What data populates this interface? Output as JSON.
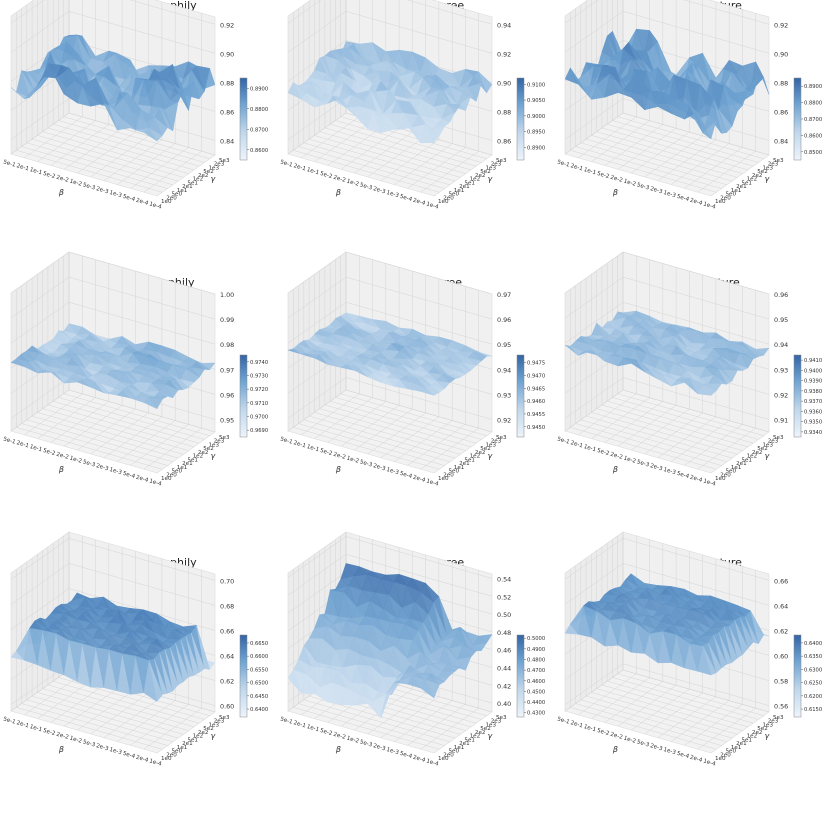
{
  "chart_data": [
    {
      "type": "surface",
      "title": "DBLP - By Homophily",
      "xlabel": "β",
      "ylabel": "γ",
      "x_ticks": [
        "5e-1",
        "2e-1",
        "1e-1",
        "5e-2",
        "2e-2",
        "1e-2",
        "5e-3",
        "2e-3",
        "1e-3",
        "5e-4",
        "2e-4",
        "1e-4"
      ],
      "y_ticks": [
        "1e0",
        "2e0",
        "5e0",
        "1e1",
        "2e1",
        "5e1",
        "1e2",
        "2e2",
        "5e2",
        "1e3",
        "2e3",
        "5e3"
      ],
      "zlim": [
        0.83,
        0.925
      ],
      "z_ticks": [
        "0.84",
        "0.86",
        "0.88",
        "0.90",
        "0.92"
      ],
      "colorbar_ticks": [
        "0.8600",
        "0.8700",
        "0.8800",
        "0.8900"
      ],
      "colorbar_range": [
        0.855,
        0.895
      ],
      "z_base": 0.88,
      "z_amp": 0.012,
      "z_tilt": 0.0,
      "rim": 0.0,
      "seed": 11,
      "dark": 0.75
    },
    {
      "type": "surface",
      "title": "DBLP - By Degree",
      "xlabel": "β",
      "ylabel": "γ",
      "x_ticks": [
        "5e-1",
        "2e-1",
        "1e-1",
        "5e-2",
        "2e-2",
        "1e-2",
        "5e-3",
        "2e-3",
        "1e-3",
        "5e-4",
        "2e-4",
        "1e-4"
      ],
      "y_ticks": [
        "1e0",
        "2e0",
        "5e0",
        "1e1",
        "2e1",
        "5e1",
        "1e2",
        "2e2",
        "5e2",
        "1e3",
        "2e3",
        "5e3"
      ],
      "zlim": [
        0.85,
        0.945
      ],
      "z_ticks": [
        "0.86",
        "0.88",
        "0.90",
        "0.92",
        "0.94"
      ],
      "colorbar_ticks": [
        "0.8900",
        "0.8950",
        "0.9000",
        "0.9050",
        "0.9100"
      ],
      "colorbar_range": [
        0.886,
        0.912
      ],
      "z_base": 0.895,
      "z_amp": 0.007,
      "z_tilt": 0.006,
      "rim": 0.0,
      "seed": 23,
      "dark": 0.55
    },
    {
      "type": "surface",
      "title": "DBLP - By Feature",
      "xlabel": "β",
      "ylabel": "γ",
      "x_ticks": [
        "5e-1",
        "2e-1",
        "1e-1",
        "5e-2",
        "2e-2",
        "1e-2",
        "5e-3",
        "2e-3",
        "1e-3",
        "5e-4",
        "2e-4",
        "1e-4"
      ],
      "y_ticks": [
        "1e0",
        "2e0",
        "5e0",
        "1e1",
        "2e1",
        "5e1",
        "1e2",
        "2e2",
        "5e2",
        "1e3",
        "2e3",
        "5e3"
      ],
      "zlim": [
        0.83,
        0.925
      ],
      "z_ticks": [
        "0.84",
        "0.86",
        "0.88",
        "0.90",
        "0.92"
      ],
      "colorbar_ticks": [
        "0.8500",
        "0.8600",
        "0.8700",
        "0.8800",
        "0.8900"
      ],
      "colorbar_range": [
        0.845,
        0.895
      ],
      "z_base": 0.88,
      "z_amp": 0.013,
      "z_tilt": 0.0,
      "rim": 0.0,
      "seed": 37,
      "dark": 0.75
    },
    {
      "type": "surface",
      "title": "ACM - By Homophily",
      "xlabel": "β",
      "ylabel": "γ",
      "x_ticks": [
        "5e-1",
        "2e-1",
        "1e-1",
        "5e-2",
        "2e-2",
        "1e-2",
        "5e-3",
        "2e-3",
        "1e-3",
        "5e-4",
        "2e-4",
        "1e-4"
      ],
      "y_ticks": [
        "1e0",
        "2e0",
        "5e0",
        "1e1",
        "2e1",
        "5e1",
        "1e2",
        "2e2",
        "5e2",
        "1e3",
        "2e3",
        "5e3"
      ],
      "zlim": [
        0.945,
        1.0
      ],
      "z_ticks": [
        "0.95",
        "0.96",
        "0.97",
        "0.98",
        "0.99",
        "1.00"
      ],
      "colorbar_ticks": [
        "0.9690",
        "0.9700",
        "0.9710",
        "0.9720",
        "0.9730",
        "0.9740"
      ],
      "colorbar_range": [
        0.9685,
        0.9745
      ],
      "z_base": 0.9715,
      "z_amp": 0.0015,
      "z_tilt": 0.0,
      "rim": 0.0,
      "seed": 41,
      "dark": 0.55
    },
    {
      "type": "surface",
      "title": "ACM - By Degree",
      "xlabel": "β",
      "ylabel": "γ",
      "x_ticks": [
        "5e-1",
        "2e-1",
        "1e-1",
        "5e-2",
        "2e-2",
        "1e-2",
        "5e-3",
        "2e-3",
        "1e-3",
        "5e-4",
        "2e-4",
        "1e-4"
      ],
      "y_ticks": [
        "1e0",
        "2e0",
        "5e0",
        "1e1",
        "2e1",
        "5e1",
        "1e2",
        "2e2",
        "5e2",
        "1e3",
        "2e3",
        "5e3"
      ],
      "zlim": [
        0.915,
        0.97
      ],
      "z_ticks": [
        "0.92",
        "0.93",
        "0.94",
        "0.95",
        "0.96",
        "0.97"
      ],
      "colorbar_ticks": [
        "0.9450",
        "0.9455",
        "0.9460",
        "0.9465",
        "0.9470",
        "0.9475"
      ],
      "colorbar_range": [
        0.9446,
        0.9478
      ],
      "z_base": 0.9462,
      "z_amp": 0.0009,
      "z_tilt": 0.0,
      "rim": 0.0,
      "seed": 53,
      "dark": 0.45
    },
    {
      "type": "surface",
      "title": "ACM - By Feature",
      "xlabel": "β",
      "ylabel": "γ",
      "x_ticks": [
        "5e-1",
        "2e-1",
        "1e-1",
        "5e-2",
        "2e-2",
        "1e-2",
        "5e-3",
        "2e-3",
        "1e-3",
        "5e-4",
        "2e-4",
        "1e-4"
      ],
      "y_ticks": [
        "1e0",
        "2e0",
        "5e0",
        "1e1",
        "2e1",
        "5e1",
        "1e2",
        "2e2",
        "5e2",
        "1e3",
        "2e3",
        "5e3"
      ],
      "zlim": [
        0.905,
        0.96
      ],
      "z_ticks": [
        "0.91",
        "0.92",
        "0.93",
        "0.94",
        "0.95",
        "0.96"
      ],
      "colorbar_ticks": [
        "0.9340",
        "0.9350",
        "0.9360",
        "0.9370",
        "0.9380",
        "0.9390",
        "0.9400",
        "0.9410"
      ],
      "colorbar_range": [
        0.9335,
        0.9415
      ],
      "z_base": 0.9375,
      "z_amp": 0.0018,
      "z_tilt": 0.0,
      "rim": 0.0,
      "seed": 67,
      "dark": 0.6
    },
    {
      "type": "surface",
      "title": "IMDB - By Homophily",
      "xlabel": "β",
      "ylabel": "γ",
      "x_ticks": [
        "5e-1",
        "2e-1",
        "1e-1",
        "5e-2",
        "2e-2",
        "1e-2",
        "5e-3",
        "2e-3",
        "1e-3",
        "5e-4",
        "2e-4",
        "1e-4"
      ],
      "y_ticks": [
        "1e0",
        "2e0",
        "5e0",
        "1e1",
        "2e1",
        "5e1",
        "1e2",
        "2e2",
        "5e2",
        "1e3",
        "2e3",
        "5e3"
      ],
      "zlim": [
        0.595,
        0.705
      ],
      "z_ticks": [
        "0.60",
        "0.62",
        "0.64",
        "0.66",
        "0.68",
        "0.70"
      ],
      "colorbar_ticks": [
        "0.6400",
        "0.6450",
        "0.6500",
        "0.6550",
        "0.6600",
        "0.6650"
      ],
      "colorbar_range": [
        0.637,
        0.668
      ],
      "z_base": 0.662,
      "z_amp": 0.003,
      "z_tilt": 0.0,
      "rim": -0.026,
      "seed": 71,
      "dark": 0.85
    },
    {
      "type": "surface",
      "title": "IMDB - By Degree",
      "xlabel": "β",
      "ylabel": "γ",
      "x_ticks": [
        "5e-1",
        "2e-1",
        "1e-1",
        "5e-2",
        "2e-2",
        "1e-2",
        "5e-3",
        "2e-3",
        "1e-3",
        "5e-4",
        "2e-4",
        "1e-4"
      ],
      "y_ticks": [
        "1e0",
        "2e0",
        "5e0",
        "1e1",
        "2e1",
        "5e1",
        "1e2",
        "2e2",
        "5e2",
        "1e3",
        "2e3",
        "5e3"
      ],
      "zlim": [
        0.39,
        0.545
      ],
      "z_ticks": [
        "0.40",
        "0.42",
        "0.44",
        "0.46",
        "0.48",
        "0.50",
        "0.52",
        "0.54"
      ],
      "colorbar_ticks": [
        "0.4300",
        "0.4400",
        "0.4500",
        "0.4600",
        "0.4700",
        "0.4800",
        "0.4900",
        "0.5000"
      ],
      "colorbar_range": [
        0.426,
        0.503
      ],
      "z_base": 0.465,
      "z_amp": 0.008,
      "z_tilt": 0.045,
      "rim": 0.0,
      "seed": 83,
      "dark": 0.7
    },
    {
      "type": "surface",
      "title": "IMDB - By Feature",
      "xlabel": "β",
      "ylabel": "γ",
      "x_ticks": [
        "5e-1",
        "2e-1",
        "1e-1",
        "5e-2",
        "2e-2",
        "1e-2",
        "5e-3",
        "2e-3",
        "1e-3",
        "5e-4",
        "2e-4",
        "1e-4"
      ],
      "y_ticks": [
        "1e0",
        "2e0",
        "5e0",
        "1e1",
        "2e1",
        "5e1",
        "1e2",
        "2e2",
        "5e2",
        "1e3",
        "2e3",
        "5e3"
      ],
      "zlim": [
        0.555,
        0.665
      ],
      "z_ticks": [
        "0.56",
        "0.58",
        "0.60",
        "0.62",
        "0.64",
        "0.66"
      ],
      "colorbar_ticks": [
        "0.6150",
        "0.6200",
        "0.6250",
        "0.6300",
        "0.6350",
        "0.6400"
      ],
      "colorbar_range": [
        0.612,
        0.643
      ],
      "z_base": 0.636,
      "z_amp": 0.003,
      "z_tilt": 0.0,
      "rim": -0.018,
      "seed": 97,
      "dark": 0.8
    }
  ]
}
